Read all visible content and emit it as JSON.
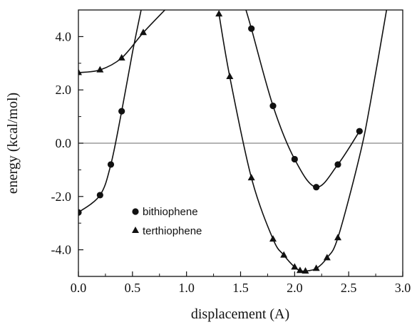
{
  "chart_data": {
    "type": "line",
    "title": "",
    "xlabel": "displacement (A)",
    "ylabel": "energy (kcal/mol)",
    "xlim": [
      0.0,
      3.0
    ],
    "ylim": [
      -5.0,
      5.0
    ],
    "x_ticks": [
      "0.0",
      "0.5",
      "1.0",
      "1.5",
      "2.0",
      "2.5",
      "3.0"
    ],
    "y_ticks": [
      "-4.0",
      "-2.0",
      "0.0",
      "2.0",
      "4.0"
    ],
    "grid": false,
    "zero_line": true,
    "legend_position": "lower-left",
    "series": [
      {
        "name": "bithiophene",
        "marker": "circle",
        "points": [
          [
            0.0,
            -2.6
          ],
          [
            0.2,
            -1.95
          ],
          [
            0.3,
            -0.8
          ],
          [
            0.4,
            1.2
          ],
          [
            1.6,
            4.3
          ],
          [
            1.8,
            1.4
          ],
          [
            2.0,
            -0.6
          ],
          [
            2.2,
            -1.65
          ],
          [
            2.4,
            -0.8
          ],
          [
            2.6,
            0.45
          ]
        ],
        "curves": [
          [
            [
              0.0,
              -2.6
            ],
            [
              0.2,
              -1.95
            ],
            [
              0.3,
              -0.8
            ],
            [
              0.4,
              1.2
            ],
            [
              0.5,
              3.4
            ],
            [
              0.58,
              5.0
            ]
          ],
          [
            [
              1.55,
              5.0
            ],
            [
              1.6,
              4.3
            ],
            [
              1.8,
              1.4
            ],
            [
              2.0,
              -0.6
            ],
            [
              2.2,
              -1.65
            ],
            [
              2.4,
              -0.8
            ],
            [
              2.6,
              0.45
            ]
          ]
        ]
      },
      {
        "name": "terthiophene",
        "marker": "triangle",
        "points": [
          [
            0.0,
            2.65
          ],
          [
            0.2,
            2.75
          ],
          [
            0.4,
            3.2
          ],
          [
            0.6,
            4.15
          ],
          [
            1.3,
            4.85
          ],
          [
            1.4,
            2.5
          ],
          [
            1.6,
            -1.3
          ],
          [
            1.8,
            -3.6
          ],
          [
            1.9,
            -4.2
          ],
          [
            2.0,
            -4.65
          ],
          [
            2.05,
            -4.78
          ],
          [
            2.1,
            -4.8
          ],
          [
            2.2,
            -4.7
          ],
          [
            2.3,
            -4.3
          ],
          [
            2.4,
            -3.55
          ]
        ],
        "curves": [
          [
            [
              0.0,
              2.65
            ],
            [
              0.2,
              2.75
            ],
            [
              0.4,
              3.2
            ],
            [
              0.6,
              4.15
            ],
            [
              0.8,
              5.0
            ]
          ],
          [
            [
              1.3,
              4.85
            ],
            [
              1.4,
              2.5
            ],
            [
              1.6,
              -1.3
            ],
            [
              1.8,
              -3.6
            ],
            [
              1.9,
              -4.2
            ],
            [
              2.0,
              -4.65
            ],
            [
              2.05,
              -4.78
            ],
            [
              2.1,
              -4.8
            ],
            [
              2.2,
              -4.7
            ],
            [
              2.3,
              -4.3
            ],
            [
              2.4,
              -3.55
            ],
            [
              2.6,
              -0.5
            ],
            [
              2.7,
              1.5
            ],
            [
              2.85,
              5.0
            ]
          ]
        ]
      }
    ]
  }
}
